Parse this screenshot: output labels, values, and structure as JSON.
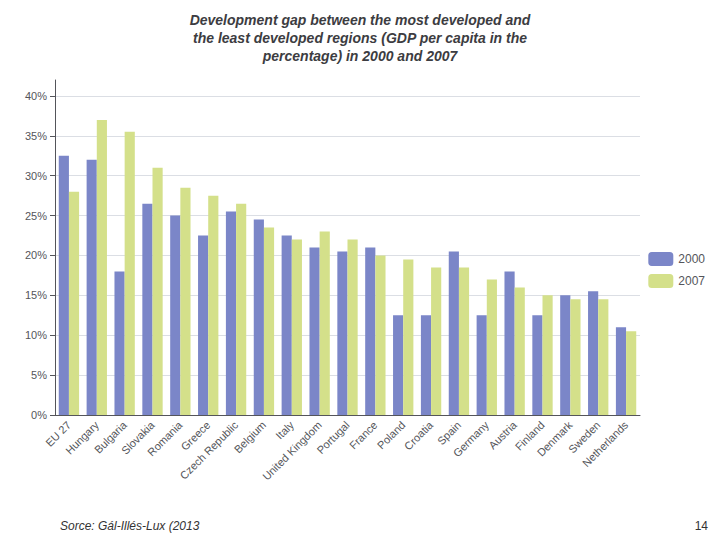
{
  "chart_data": {
    "type": "bar",
    "title": "Development gap between the most developed and\nthe least developed regions (GDP per capita in the\npercentage) in 2000 and 2007",
    "categories": [
      "EU 27",
      "Hungary",
      "Bulgaria",
      "Slovakia",
      "Romania",
      "Greece",
      "Czech Republic",
      "Belgium",
      "Italy",
      "United Kingdom",
      "Portugal",
      "France",
      "Poland",
      "Croatia",
      "Spain",
      "Germany",
      "Austria",
      "Finland",
      "Denmark",
      "Sweden",
      "Netherlands"
    ],
    "series": [
      {
        "name": "2000",
        "color": "#7b86c8",
        "values": [
          0.325,
          0.32,
          0.18,
          0.265,
          0.25,
          0.225,
          0.255,
          0.245,
          0.225,
          0.21,
          0.205,
          0.21,
          0.125,
          0.125,
          0.205,
          0.125,
          0.18,
          0.125,
          0.15,
          0.155,
          0.11
        ]
      },
      {
        "name": "2007",
        "color": "#d4e08a",
        "values": [
          0.28,
          0.37,
          0.355,
          0.31,
          0.285,
          0.275,
          0.265,
          0.235,
          0.22,
          0.23,
          0.22,
          0.2,
          0.195,
          0.185,
          0.185,
          0.17,
          0.16,
          0.15,
          0.145,
          0.145,
          0.105
        ]
      }
    ],
    "ylim": [
      0,
      0.42
    ],
    "yticks": [
      {
        "value": 0,
        "label": "0%"
      },
      {
        "value": 0.05,
        "label": "5%"
      },
      {
        "value": 0.1,
        "label": "10%"
      },
      {
        "value": 0.15,
        "label": "15%"
      },
      {
        "value": 0.2,
        "label": "20%"
      },
      {
        "value": 0.25,
        "label": "25%"
      },
      {
        "value": 0.3,
        "label": "30%"
      },
      {
        "value": 0.35,
        "label": "35%"
      },
      {
        "value": 0.4,
        "label": "40%"
      }
    ],
    "grid": true,
    "legend": "right",
    "annotations": [
      "Sorce: Gál-Illés-Lux (2013",
      "14"
    ]
  }
}
